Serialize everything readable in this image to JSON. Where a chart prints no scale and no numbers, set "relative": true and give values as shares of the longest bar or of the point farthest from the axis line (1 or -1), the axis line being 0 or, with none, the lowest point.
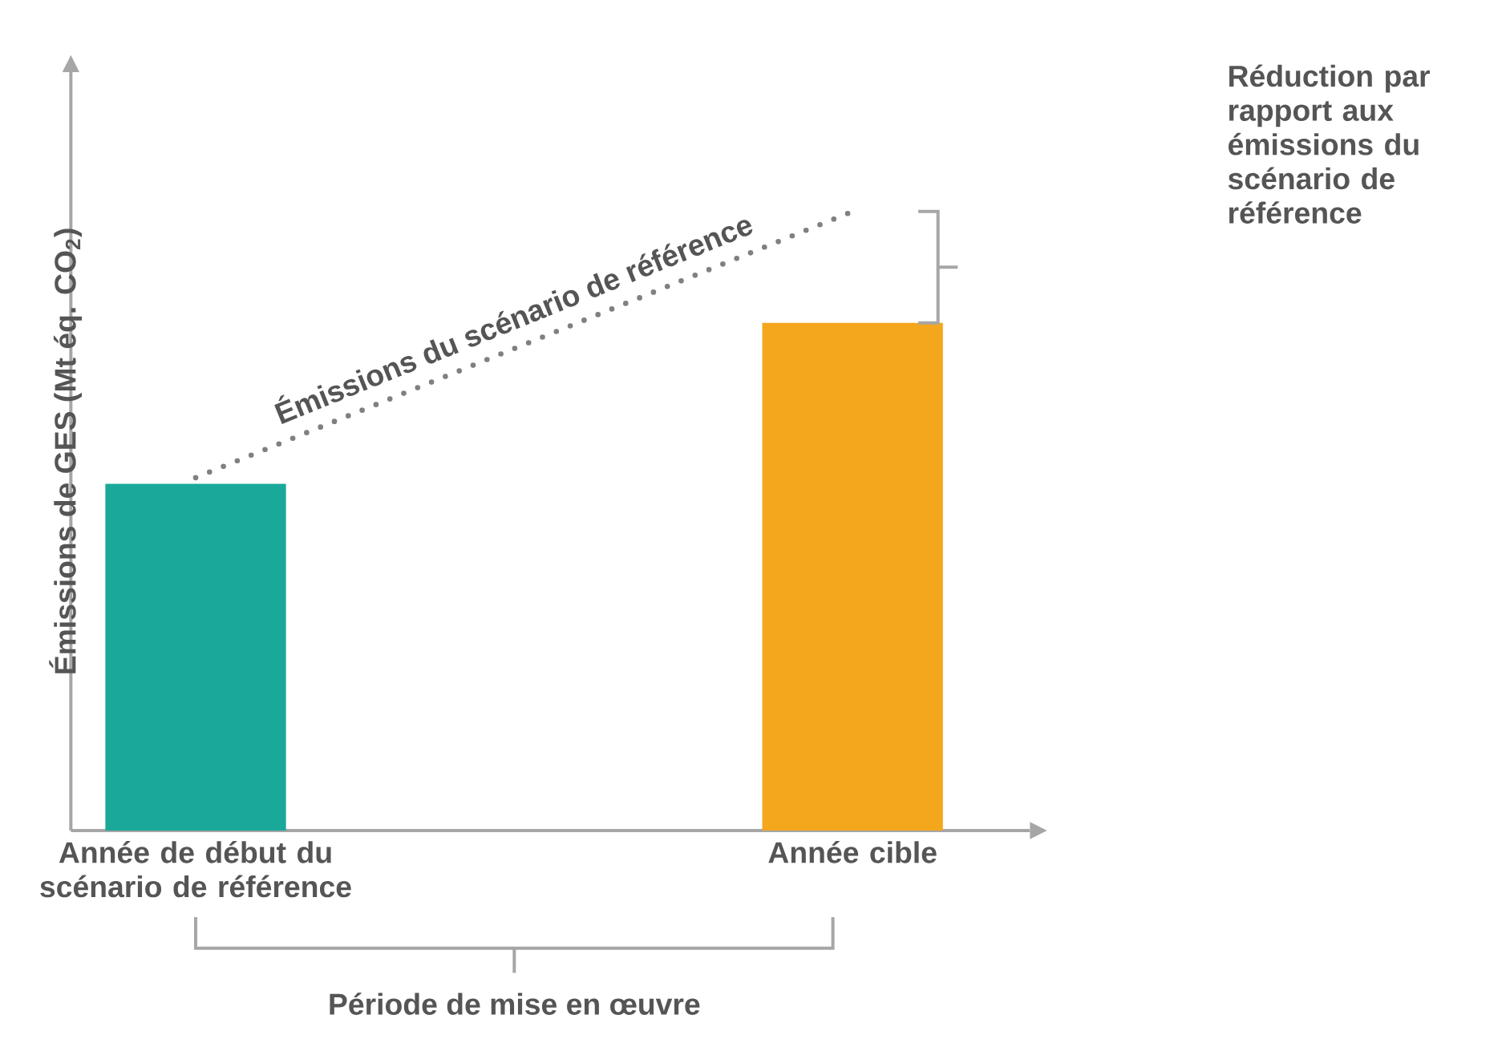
{
  "chart_data": {
    "type": "bar",
    "relative": true,
    "ylabel": "Émissions de GES (Mt éq. CO$_{2}$)",
    "categories": [
      "Année de début du scénario de référence",
      "Année cible"
    ],
    "series": [
      {
        "colors": [
          "#19a89a",
          "#f4a61c"
        ],
        "values": [
          0.56,
          0.82
        ]
      },
      {
        "type": "line",
        "name": "Émissions du scénario de référence",
        "values": [
          0.57,
          1.0
        ],
        "color": "#808080",
        "line_style": "dotted"
      }
    ],
    "annotations": [
      "Réduction par rapport aux émissions du scénario de référence",
      "Période de mise en œuvre"
    ]
  }
}
